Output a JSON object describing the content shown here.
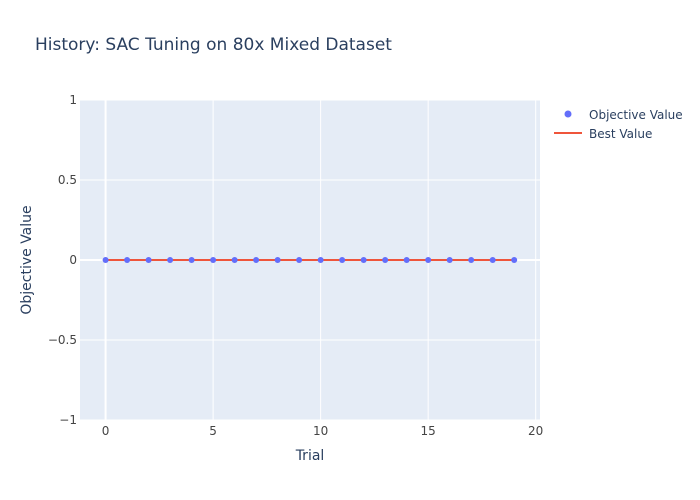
{
  "chart_data": {
    "type": "scatter",
    "title": "History: SAC Tuning on 80x Mixed Dataset",
    "xlabel": "Trial",
    "ylabel": "Objective Value",
    "xlim": [
      -1.19,
      20.2
    ],
    "ylim": [
      -1,
      1
    ],
    "x_ticks": [
      0,
      5,
      10,
      15,
      20
    ],
    "y_ticks": [
      1,
      0.5,
      0,
      -0.5,
      -1
    ],
    "x_tick_labels": [
      "0",
      "5",
      "10",
      "15",
      "20"
    ],
    "y_tick_labels": [
      "1",
      "0.5",
      "0",
      "−0.5",
      "−1"
    ],
    "grid": true,
    "legend_placement": "top-right",
    "series": [
      {
        "name": "Objective Value",
        "kind": "markers",
        "color": "#636efa",
        "x": [
          0,
          1,
          2,
          3,
          4,
          5,
          6,
          7,
          8,
          9,
          10,
          11,
          12,
          13,
          14,
          15,
          16,
          17,
          18,
          19
        ],
        "y": [
          0,
          0,
          0,
          0,
          0,
          0,
          0,
          0,
          0,
          0,
          0,
          0,
          0,
          0,
          0,
          0,
          0,
          0,
          0,
          0
        ]
      },
      {
        "name": "Best Value",
        "kind": "line",
        "color": "#ef553b",
        "x": [
          0,
          1,
          2,
          3,
          4,
          5,
          6,
          7,
          8,
          9,
          10,
          11,
          12,
          13,
          14,
          15,
          16,
          17,
          18,
          19
        ],
        "y": [
          0,
          0,
          0,
          0,
          0,
          0,
          0,
          0,
          0,
          0,
          0,
          0,
          0,
          0,
          0,
          0,
          0,
          0,
          0,
          0
        ]
      }
    ],
    "colors": {
      "plot_background": "#e5ecf6",
      "grid": "#ffffff",
      "text": "#2a3f5f",
      "tick_text": "#444444"
    }
  }
}
